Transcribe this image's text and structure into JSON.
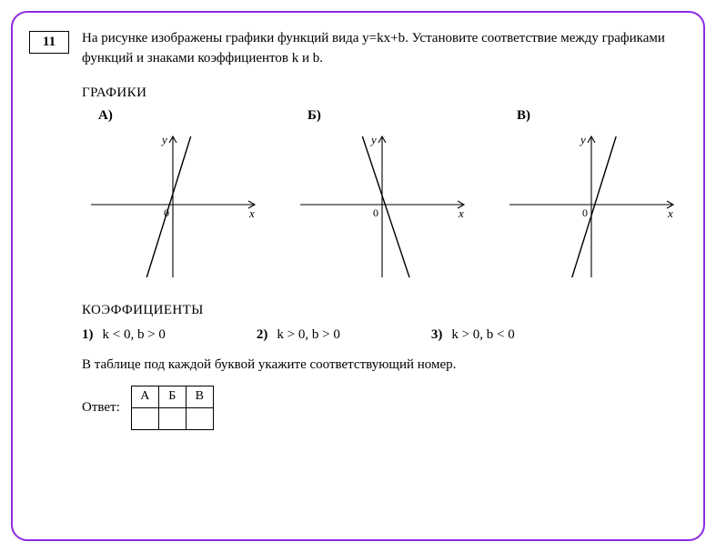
{
  "card": {
    "border_color": "#8a2be2"
  },
  "question_number": "11",
  "problem_text": "На рисунке изображены графики функций вида y=kx+b. Установите соответствие между графиками функций и знаками коэффициентов k и b.",
  "graphs_title": "ГРАФИКИ",
  "graphs": {
    "labels": [
      "А)",
      "Б)",
      "В)"
    ],
    "axis_x_label": "x",
    "axis_y_label": "y",
    "origin_label": "0",
    "axis_color": "#000000",
    "line_color": "#000000",
    "line_width": 1.4,
    "axis_width": 1.1,
    "lines": [
      {
        "slope": 3.2,
        "intercept": 12
      },
      {
        "slope": -3.0,
        "intercept": 10
      },
      {
        "slope": 3.2,
        "intercept": -12
      }
    ]
  },
  "coefficients_title": "КОЭФФИЦИЕНТЫ",
  "coefficients": [
    {
      "num": "1)",
      "text": "k < 0, b > 0"
    },
    {
      "num": "2)",
      "text": "k > 0, b > 0"
    },
    {
      "num": "3)",
      "text": "k > 0, b < 0"
    }
  ],
  "instruction": "В таблице под каждой буквой укажите соответствующий номер.",
  "answer_label": "Ответ:",
  "answer_table": {
    "headers": [
      "А",
      "Б",
      "В"
    ],
    "cells": [
      "",
      "",
      ""
    ]
  }
}
